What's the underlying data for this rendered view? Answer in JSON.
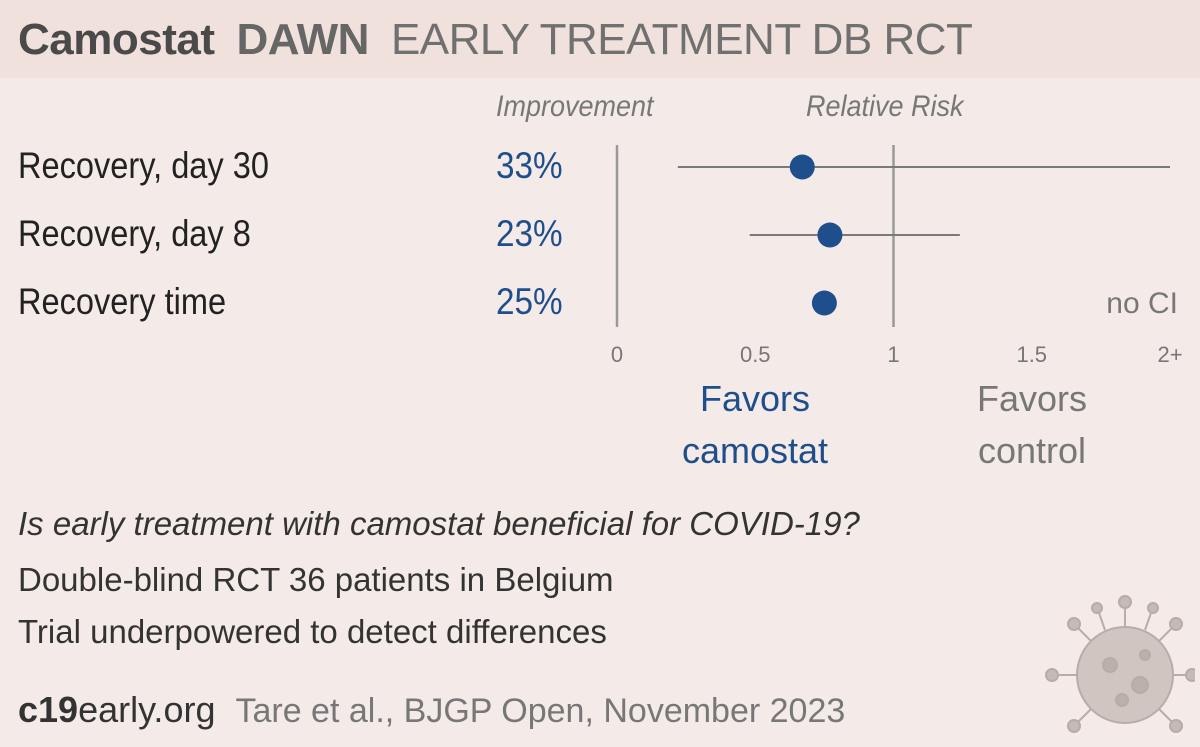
{
  "title": {
    "drug": "Camostat",
    "trial": "DAWN",
    "rest": "EARLY TREATMENT  DB RCT"
  },
  "columns": {
    "improvement": "Improvement",
    "relative_risk": "Relative Risk"
  },
  "chart_data": {
    "type": "forest",
    "x_axis": {
      "ticks": [
        0,
        0.5,
        1,
        1.5,
        2
      ],
      "tick_labels": [
        "0",
        "0.5",
        "1",
        "1.5",
        "2+"
      ],
      "range": [
        0,
        2
      ],
      "reference_line": 1
    },
    "outcomes": [
      {
        "label": "Recovery, day 30",
        "improvement": "33%",
        "rr": 0.67,
        "ci_low": 0.22,
        "ci_high": 2.0
      },
      {
        "label": "Recovery, day 8",
        "improvement": "23%",
        "rr": 0.77,
        "ci_low": 0.48,
        "ci_high": 1.24
      },
      {
        "label": "Recovery time",
        "improvement": "25%",
        "rr": 0.75,
        "ci_low": null,
        "ci_high": null,
        "note": "no CI"
      }
    ]
  },
  "favors": {
    "left_line1": "Favors",
    "left_line2": "camostat",
    "right_line1": "Favors",
    "right_line2": "control"
  },
  "info": {
    "question": "Is early treatment with camostat beneficial for COVID-19?",
    "design": "Double-blind RCT 36 patients in Belgium",
    "power": "Trial underpowered to detect differences"
  },
  "footer": {
    "brand_bold": "c19",
    "brand_rest": "early.org",
    "citation": "Tare et al., BJGP Open, November 2023"
  },
  "colors": {
    "accent": "#1f4e8c",
    "background": "#f4ebe8",
    "header": "#f0e1dc",
    "axis": "#999999"
  }
}
